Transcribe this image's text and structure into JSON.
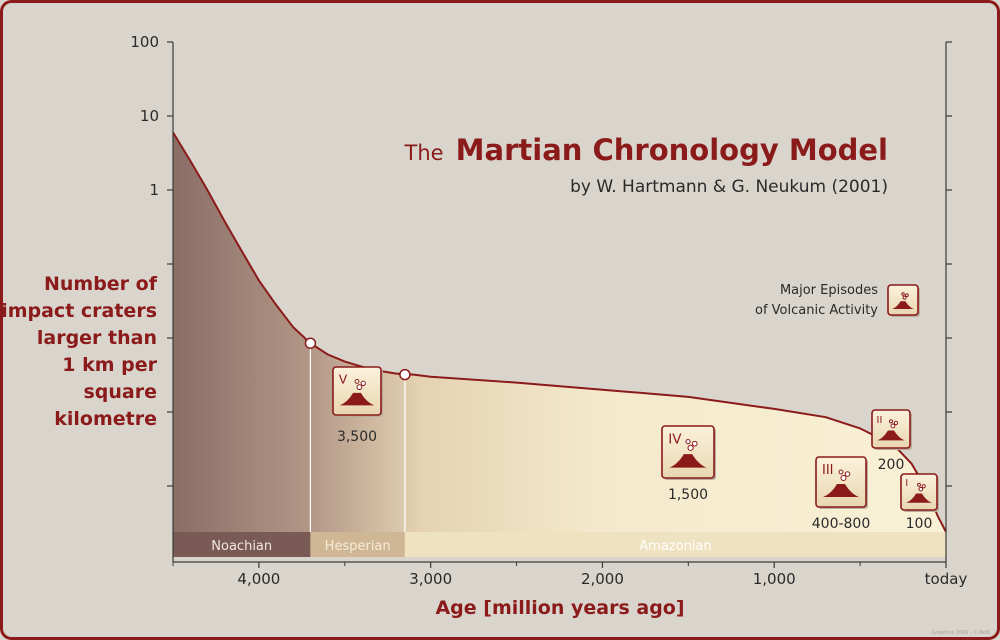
{
  "chart_data": {
    "type": "area",
    "title_prefix": "The",
    "title_main": "Martian Chronology Model",
    "subtitle": "by W. Hartmann & G. Neukum (2001)",
    "ylabel_lines": [
      "Number of",
      "impact craters",
      "larger than",
      "1 km per",
      "square",
      "kilometre"
    ],
    "xlabel": "Age [million years ago]",
    "x_scale": "linear (reversed, 0 = today at right)",
    "y_scale": "log",
    "xlim": [
      4500,
      0
    ],
    "y_ticks": [
      {
        "value": 100,
        "label": "100"
      },
      {
        "value": 10,
        "label": "10"
      },
      {
        "value": 1,
        "label": "1"
      },
      {
        "value": 0.1,
        "label": ""
      },
      {
        "value": 0.01,
        "label": ""
      },
      {
        "value": 0.001,
        "label": ""
      },
      {
        "value": 0.0001,
        "label": ""
      }
    ],
    "x_ticks": [
      {
        "value": 4000,
        "label": "4,000"
      },
      {
        "value": 3000,
        "label": "3,000"
      },
      {
        "value": 2000,
        "label": "2,000"
      },
      {
        "value": 1000,
        "label": "1,000"
      },
      {
        "value": 0,
        "label": "today"
      }
    ],
    "x_minor_ticks": [
      4500,
      3500,
      2500,
      1500,
      500
    ],
    "crater_density_curve": {
      "x": [
        4500,
        4400,
        4300,
        4200,
        4100,
        4000,
        3900,
        3800,
        3700,
        3600,
        3500,
        3400,
        3300,
        3200,
        3100,
        3000,
        2500,
        2000,
        1500,
        1000,
        700,
        500,
        300,
        200,
        100,
        50,
        0
      ],
      "y": [
        6,
        2.5,
        1.0,
        0.38,
        0.15,
        0.06,
        0.028,
        0.014,
        0.0085,
        0.006,
        0.0048,
        0.0041,
        0.0036,
        0.0033,
        0.0032,
        0.003,
        0.0025,
        0.002,
        0.0016,
        0.0011,
        0.00085,
        0.0006,
        0.00035,
        0.0002,
        8e-05,
        4e-05,
        2e-05
      ]
    },
    "epoch_boundaries": [
      {
        "age": 3700,
        "density": 0.0085
      },
      {
        "age": 3150,
        "density": 0.0032
      }
    ],
    "epochs": [
      {
        "name": "Noachian",
        "from": 4500,
        "to": 3700
      },
      {
        "name": "Hesperian",
        "from": 3700,
        "to": 3150
      },
      {
        "name": "Amazonian",
        "from": 3150,
        "to": 0
      }
    ],
    "volcanic_episodes": [
      {
        "numeral": "V",
        "label": "3,500",
        "age": 3500
      },
      {
        "numeral": "IV",
        "label": "1,500",
        "age": 1500
      },
      {
        "numeral": "III",
        "label": "400-800",
        "age": 600
      },
      {
        "numeral": "II",
        "label": "200",
        "age": 200
      },
      {
        "numeral": "I",
        "label": "100",
        "age": 100
      }
    ],
    "legend": {
      "line1": "Major Episodes",
      "line2": "of Volcanic Activity",
      "position": "right"
    }
  },
  "colors": {
    "background": "#d9d5cd",
    "frame": "#8b1a1a",
    "accent_text": "#8b1a1a",
    "text": "#2a2a2a",
    "curve": "#8b1a1a",
    "noachian_band": "#7a5a55",
    "hesperian_band": "#cfb796",
    "amazonian_band": "#efe2c0",
    "volcano": "#8b1a1a"
  },
  "footer_credit": "Graphics 2009 – C.Reiß"
}
